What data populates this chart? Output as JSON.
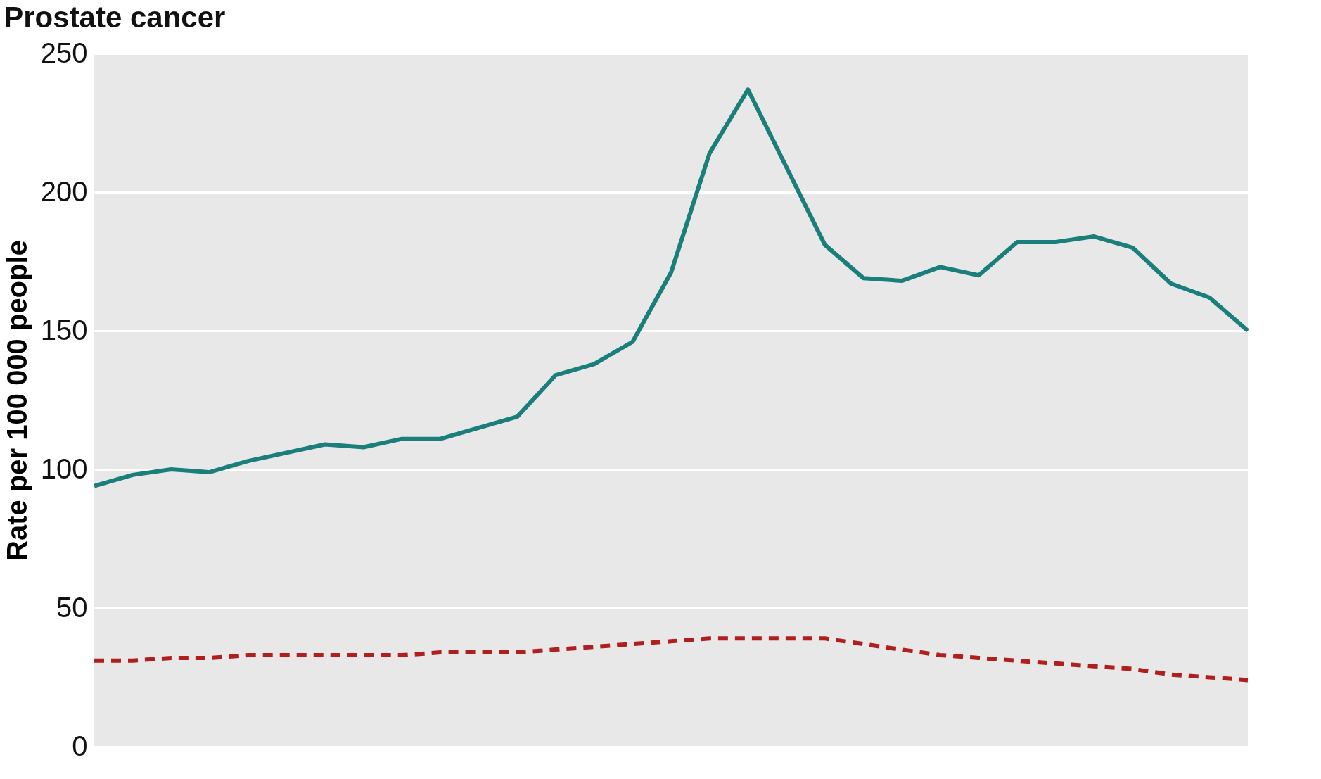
{
  "chart_data": {
    "type": "line",
    "title": "Prostate cancer",
    "ylabel": "Rate per 100 000 people",
    "categories": [
      null,
      null,
      null,
      null,
      null,
      null,
      null,
      null,
      null,
      null,
      null,
      null,
      null,
      null,
      null,
      null,
      null,
      null,
      null,
      null,
      null,
      null,
      null,
      null,
      null,
      null,
      null,
      null,
      null,
      null,
      null
    ],
    "series": [
      {
        "color": "#1a7f7a",
        "line_style": "solid",
        "values": [
          94,
          98,
          100,
          99,
          103,
          106,
          109,
          108,
          111,
          111,
          115,
          119,
          134,
          138,
          146,
          171,
          214,
          237,
          209,
          181,
          169,
          168,
          173,
          170,
          182,
          182,
          184,
          180,
          167,
          162,
          150
        ]
      },
      {
        "color": "#b01e1e",
        "line_style": "dashed",
        "values": [
          31,
          31,
          32,
          32,
          33,
          33,
          33,
          33,
          33,
          34,
          34,
          34,
          35,
          36,
          37,
          38,
          39,
          39,
          39,
          39,
          37,
          35,
          33,
          32,
          31,
          30,
          29,
          28,
          26,
          25,
          24
        ]
      }
    ],
    "ylim": [
      0,
      250
    ],
    "yticks": [
      0,
      50,
      100,
      150,
      200,
      250
    ],
    "grid": "y",
    "legend": false
  }
}
